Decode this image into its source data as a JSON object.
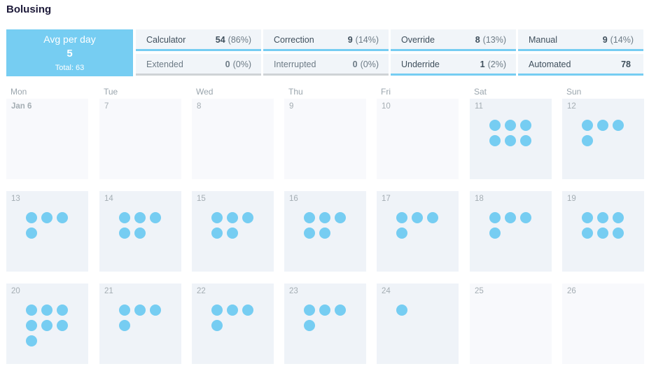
{
  "page": {
    "title": "Bolusing"
  },
  "summary": {
    "avg_label": "Avg per day",
    "avg_value": "5",
    "total": "Total: 63",
    "stats": [
      {
        "label": "Calculator",
        "value": "54",
        "pct": "(86%)"
      },
      {
        "label": "Correction",
        "value": "9",
        "pct": "(14%)"
      },
      {
        "label": "Override",
        "value": "8",
        "pct": "(13%)"
      },
      {
        "label": "Manual",
        "value": "9",
        "pct": "(14%)"
      },
      {
        "label": "Extended",
        "value": "0",
        "pct": "(0%)"
      },
      {
        "label": "Interrupted",
        "value": "0",
        "pct": "(0%)"
      },
      {
        "label": "Underride",
        "value": "1",
        "pct": "(2%)"
      },
      {
        "label": "Automated",
        "value": "78",
        "pct": ""
      }
    ]
  },
  "calendar": {
    "weekdays": [
      "Mon",
      "Tue",
      "Wed",
      "Thu",
      "Fri",
      "Sat",
      "Sun"
    ],
    "weeks": [
      [
        {
          "label": "Jan 6",
          "boluses": 0,
          "empty": true
        },
        {
          "label": "7",
          "boluses": 0,
          "empty": true
        },
        {
          "label": "8",
          "boluses": 0,
          "empty": true
        },
        {
          "label": "9",
          "boluses": 0,
          "empty": true
        },
        {
          "label": "10",
          "boluses": 0,
          "empty": true
        },
        {
          "label": "11",
          "boluses": 6,
          "empty": false
        },
        {
          "label": "12",
          "boluses": 4,
          "empty": false
        }
      ],
      [
        {
          "label": "13",
          "boluses": 4,
          "empty": false
        },
        {
          "label": "14",
          "boluses": 5,
          "empty": false
        },
        {
          "label": "15",
          "boluses": 5,
          "empty": false
        },
        {
          "label": "16",
          "boluses": 5,
          "empty": false
        },
        {
          "label": "17",
          "boluses": 4,
          "empty": false
        },
        {
          "label": "18",
          "boluses": 4,
          "empty": false
        },
        {
          "label": "19",
          "boluses": 6,
          "empty": false
        }
      ],
      [
        {
          "label": "20",
          "boluses": 7,
          "empty": false
        },
        {
          "label": "21",
          "boluses": 4,
          "empty": false
        },
        {
          "label": "22",
          "boluses": 4,
          "empty": false
        },
        {
          "label": "23",
          "boluses": 4,
          "empty": false
        },
        {
          "label": "24",
          "boluses": 1,
          "empty": false
        },
        {
          "label": "25",
          "boluses": 0,
          "empty": true
        },
        {
          "label": "26",
          "boluses": 0,
          "empty": true
        }
      ]
    ]
  },
  "colors": {
    "accent": "#76cdf2",
    "cell": "#eff3f8",
    "cell_empty": "#f8f9fc"
  }
}
